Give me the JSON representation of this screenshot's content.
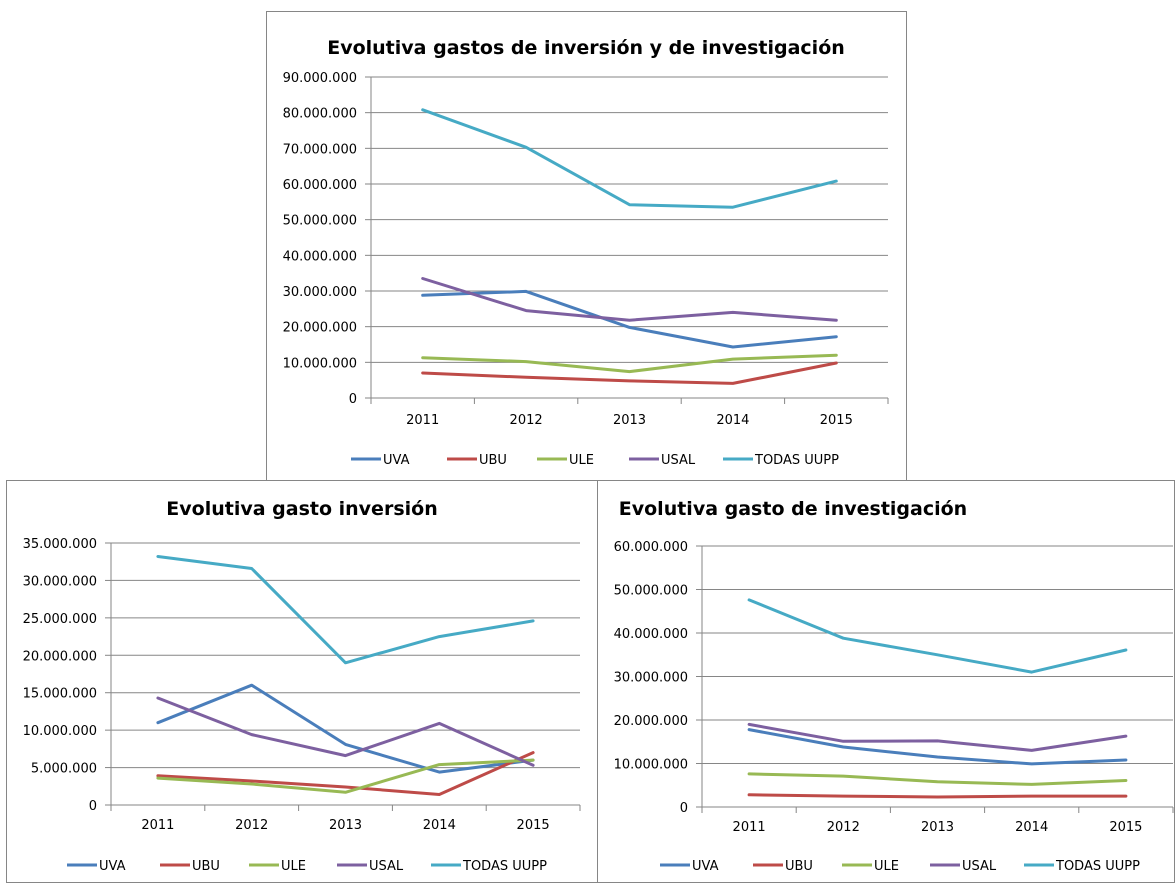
{
  "colors": {
    "UVA": "#4a7ebb",
    "UBU": "#be4b48",
    "ULE": "#98b954",
    "USAL": "#7d60a0",
    "TODAS UUPP": "#46aac5"
  },
  "chart_data": [
    {
      "type": "line",
      "title": "Evolutiva gastos de inversión y de investigación",
      "categories": [
        "2011",
        "2012",
        "2013",
        "2014",
        "2015"
      ],
      "ylim": [
        0,
        90000000
      ],
      "yticks": [
        {
          "value": 0,
          "label": "0"
        },
        {
          "value": 10000000,
          "label": "10.000.000"
        },
        {
          "value": 20000000,
          "label": "20.000.000"
        },
        {
          "value": 30000000,
          "label": "30.000.000"
        },
        {
          "value": 40000000,
          "label": "40.000.000"
        },
        {
          "value": 50000000,
          "label": "50.000.000"
        },
        {
          "value": 60000000,
          "label": "60.000.000"
        },
        {
          "value": 70000000,
          "label": "70.000.000"
        },
        {
          "value": 80000000,
          "label": "80.000.000"
        },
        {
          "value": 90000000,
          "label": "90.000.000"
        }
      ],
      "grid": true,
      "legend": "bottom",
      "series": [
        {
          "name": "UVA",
          "values": [
            28800000,
            29900000,
            19800000,
            14300000,
            17200000
          ]
        },
        {
          "name": "UBU",
          "values": [
            7000000,
            5800000,
            4800000,
            4100000,
            9800000
          ]
        },
        {
          "name": "ULE",
          "values": [
            11300000,
            10200000,
            7400000,
            10900000,
            12000000
          ]
        },
        {
          "name": "USAL",
          "values": [
            33500000,
            24500000,
            21800000,
            24000000,
            21800000
          ]
        },
        {
          "name": "TODAS UUPP",
          "values": [
            80800000,
            70300000,
            54200000,
            53500000,
            60800000
          ]
        }
      ]
    },
    {
      "type": "line",
      "title": "Evolutiva gasto inversión",
      "categories": [
        "2011",
        "2012",
        "2013",
        "2014",
        "2015"
      ],
      "ylim": [
        0,
        35000000
      ],
      "yticks": [
        {
          "value": 0,
          "label": "0"
        },
        {
          "value": 5000000,
          "label": "5.000.000"
        },
        {
          "value": 10000000,
          "label": "10.000.000"
        },
        {
          "value": 15000000,
          "label": "15.000.000"
        },
        {
          "value": 20000000,
          "label": "20.000.000"
        },
        {
          "value": 25000000,
          "label": "25.000.000"
        },
        {
          "value": 30000000,
          "label": "30.000.000"
        },
        {
          "value": 35000000,
          "label": "35.000.000"
        }
      ],
      "grid": true,
      "legend": "bottom",
      "series": [
        {
          "name": "UVA",
          "values": [
            11000000,
            16000000,
            8100000,
            4400000,
            6000000
          ]
        },
        {
          "name": "UBU",
          "values": [
            3900000,
            3200000,
            2400000,
            1400000,
            7000000
          ]
        },
        {
          "name": "ULE",
          "values": [
            3600000,
            2800000,
            1700000,
            5400000,
            6000000
          ]
        },
        {
          "name": "USAL",
          "values": [
            14300000,
            9400000,
            6600000,
            10900000,
            5300000
          ]
        },
        {
          "name": "TODAS UUPP",
          "values": [
            33200000,
            31600000,
            19000000,
            22500000,
            24600000
          ]
        }
      ]
    },
    {
      "type": "line",
      "title": "Evolutiva gasto de investigación",
      "categories": [
        "2011",
        "2012",
        "2013",
        "2014",
        "2015"
      ],
      "ylim": [
        0,
        60000000
      ],
      "yticks": [
        {
          "value": 0,
          "label": "0"
        },
        {
          "value": 10000000,
          "label": "10.000.000"
        },
        {
          "value": 20000000,
          "label": "20.000.000"
        },
        {
          "value": 30000000,
          "label": "30.000.000"
        },
        {
          "value": 40000000,
          "label": "40.000.000"
        },
        {
          "value": 50000000,
          "label": "50.000.000"
        },
        {
          "value": 60000000,
          "label": "60.000.000"
        }
      ],
      "grid": true,
      "legend": "bottom",
      "series": [
        {
          "name": "UVA",
          "values": [
            17800000,
            13800000,
            11500000,
            9900000,
            10800000
          ]
        },
        {
          "name": "UBU",
          "values": [
            2800000,
            2500000,
            2300000,
            2500000,
            2500000
          ]
        },
        {
          "name": "ULE",
          "values": [
            7600000,
            7100000,
            5800000,
            5200000,
            6100000
          ]
        },
        {
          "name": "USAL",
          "values": [
            19000000,
            15100000,
            15200000,
            13000000,
            16300000
          ]
        },
        {
          "name": "TODAS UUPP",
          "values": [
            47600000,
            38800000,
            35000000,
            31000000,
            36100000
          ]
        }
      ]
    }
  ]
}
